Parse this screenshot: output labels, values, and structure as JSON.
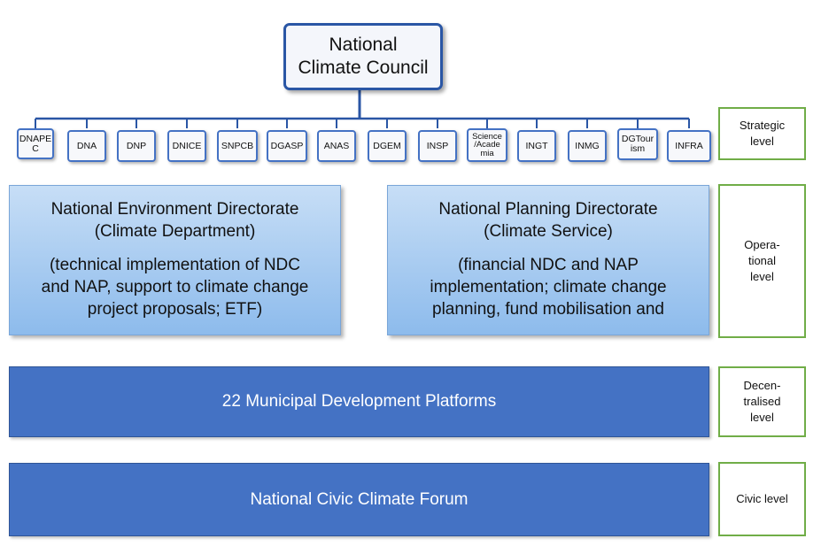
{
  "council": {
    "line1": "National",
    "line2": "Climate Council"
  },
  "agencies": [
    {
      "line1": "DNAPE",
      "line2": "C"
    },
    {
      "line1": "DNA"
    },
    {
      "line1": "DNP"
    },
    {
      "line1": "DNICE"
    },
    {
      "line1": "SNPCB"
    },
    {
      "line1": "DGASP"
    },
    {
      "line1": "ANAS"
    },
    {
      "line1": "DGEM"
    },
    {
      "line1": "INSP"
    },
    {
      "line1": "Science",
      "line2": "/Acade",
      "line3": "mia"
    },
    {
      "line1": "INGT"
    },
    {
      "line1": "INMG"
    },
    {
      "line1": "DGTour",
      "line2": "ism"
    },
    {
      "line1": "INFRA"
    }
  ],
  "directorates": {
    "environment": {
      "title1": "National Environment Directorate",
      "title2": "(Climate Department)",
      "desc1": "(technical implementation of NDC",
      "desc2": "and NAP, support to climate change",
      "desc3": "project proposals; ETF)"
    },
    "planning": {
      "title1": "National Planning Directorate",
      "title2": "(Climate Service)",
      "desc1": "(financial NDC and NAP",
      "desc2": "implementation; climate change",
      "desc3": "planning, fund mobilisation and"
    }
  },
  "platforms": "22 Municipal Development Platforms",
  "forum": "National Civic Climate Forum",
  "levels": {
    "strategic": {
      "line1": "Strategic",
      "line2": "level"
    },
    "operational": {
      "line1": "Opera-",
      "line2": "tional",
      "line3": "level"
    },
    "decentralised": {
      "line1": "Decen-",
      "line2": "tralised",
      "line3": "level"
    },
    "civic": {
      "line1": "Civic level"
    }
  },
  "colors": {
    "council_border": "#2a56a5",
    "agency_border": "#4472c4",
    "level_border": "#70ad47",
    "bar_fill": "#4472c4",
    "directorate_fill_top": "#c7def6",
    "directorate_fill_bottom": "#8dbbec"
  }
}
